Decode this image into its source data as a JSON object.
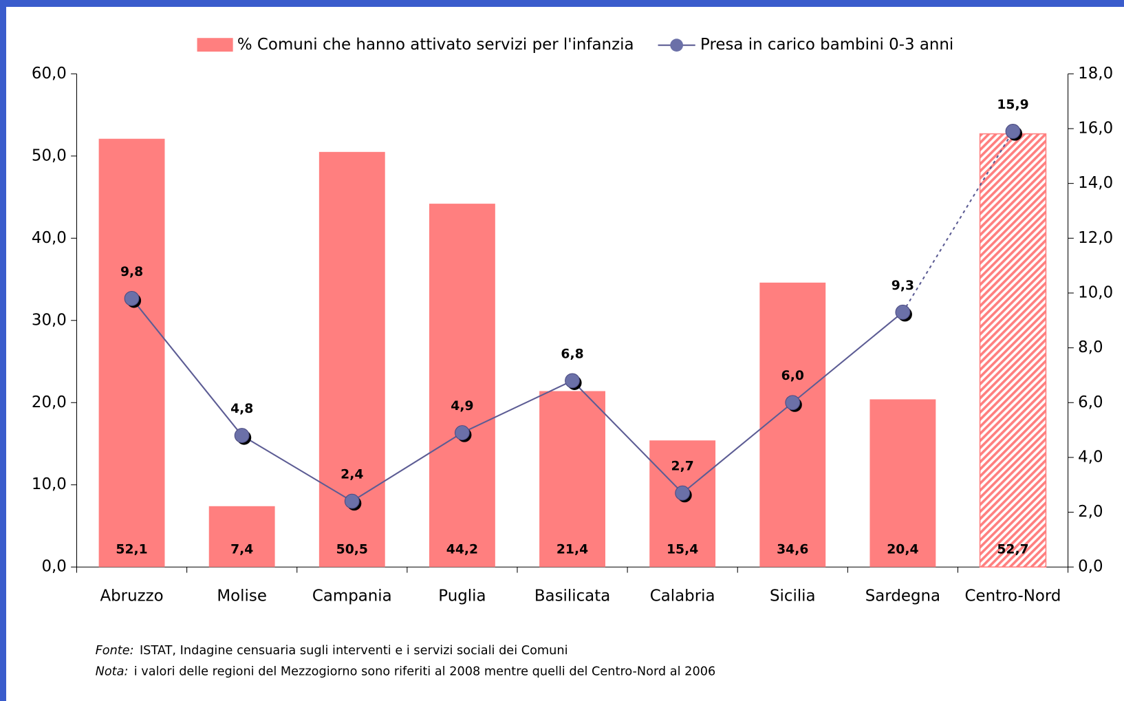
{
  "chart_data": {
    "type": "bar-line",
    "categories": [
      "Abruzzo",
      "Molise",
      "Campania",
      "Puglia",
      "Basilicata",
      "Calabria",
      "Sicilia",
      "Sardegna",
      "Centro-Nord"
    ],
    "series": [
      {
        "name": "% Comuni che hanno attivato servizi per l'infanzia",
        "type": "bar",
        "color": "#ff7f7f",
        "values": [
          52.1,
          7.4,
          50.5,
          44.2,
          21.4,
          15.4,
          34.6,
          20.4,
          52.7
        ],
        "value_labels": [
          "52,1",
          "7,4",
          "50,5",
          "44,2",
          "21,4",
          "15,4",
          "34,6",
          "20,4",
          "52,7"
        ],
        "hatched": [
          false,
          false,
          false,
          false,
          false,
          false,
          false,
          false,
          true
        ]
      },
      {
        "name": "Presa in carico bambini 0-3 anni",
        "type": "line",
        "axis": "y2",
        "color": "#5c5c94",
        "marker_color": "#6b70a8",
        "values": [
          9.8,
          4.8,
          2.4,
          4.9,
          6.8,
          2.7,
          6.0,
          9.3,
          15.9
        ],
        "value_labels": [
          "9,8",
          "4,8",
          "2,4",
          "4,9",
          "6,8",
          "2,7",
          "6,0",
          "9,3",
          "15,9"
        ],
        "dashed_last_segment": true
      }
    ],
    "ylim": [
      0,
      60
    ],
    "yticks": [
      {
        "value": 0,
        "label": "0,0"
      },
      {
        "value": 10,
        "label": "10,0"
      },
      {
        "value": 20,
        "label": "20,0"
      },
      {
        "value": 30,
        "label": "30,0"
      },
      {
        "value": 40,
        "label": "40,0"
      },
      {
        "value": 50,
        "label": "50,0"
      },
      {
        "value": 60,
        "label": "60,0"
      }
    ],
    "y2lim": [
      0,
      18
    ],
    "y2ticks": [
      {
        "value": 0,
        "label": "0,0"
      },
      {
        "value": 2,
        "label": "2,0"
      },
      {
        "value": 4,
        "label": "4,0"
      },
      {
        "value": 6,
        "label": "6,0"
      },
      {
        "value": 8,
        "label": "8,0"
      },
      {
        "value": 10,
        "label": "10,0"
      },
      {
        "value": 12,
        "label": "12,0"
      },
      {
        "value": 14,
        "label": "14,0"
      },
      {
        "value": 16,
        "label": "16,0"
      },
      {
        "value": 18,
        "label": "18,0"
      }
    ],
    "legend": "top",
    "grid": false,
    "footnotes": [
      {
        "label": "Fonte:",
        "text": "ISTAT, Indagine censuaria sugli interventi e i servizi sociali dei Comuni"
      },
      {
        "label": "Nota:",
        "text": "i valori delle regioni del Mezzogiorno sono riferiti al 2008 mentre quelli del Centro-Nord al 2006"
      }
    ]
  }
}
